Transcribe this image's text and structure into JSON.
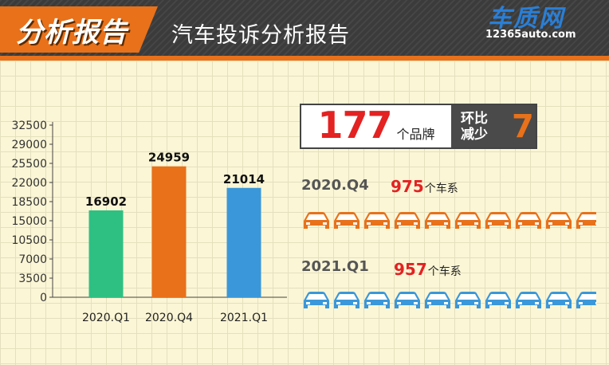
{
  "header": {
    "badge": "分析报告",
    "title": "汽车投诉分析报告",
    "logo_cn": "车质网",
    "logo_url": "12365auto.com"
  },
  "stats": {
    "brand_count": "177",
    "brand_unit": "个品牌",
    "change_label_line1": "环比",
    "change_label_line2": "减少",
    "change_value": "7"
  },
  "series_rows": [
    {
      "period": "2020.Q4",
      "count": "975",
      "unit": "个车系",
      "color": "#e8711a"
    },
    {
      "period": "2021.Q1",
      "count": "957",
      "unit": "个车系",
      "color": "#3a97d9"
    }
  ],
  "chart_data": {
    "type": "bar",
    "categories": [
      "2020.Q1",
      "2020.Q4",
      "2021.Q1"
    ],
    "values": [
      16902,
      24959,
      21014
    ],
    "colors": [
      "#2ec083",
      "#e8711a",
      "#3a97d9"
    ],
    "ylim": [
      0,
      32500
    ],
    "yticks": [
      0,
      3500,
      7000,
      10500,
      15000,
      18500,
      22000,
      25500,
      29000,
      32500
    ],
    "title": "",
    "xlabel": "",
    "ylabel": "",
    "grid": false
  }
}
